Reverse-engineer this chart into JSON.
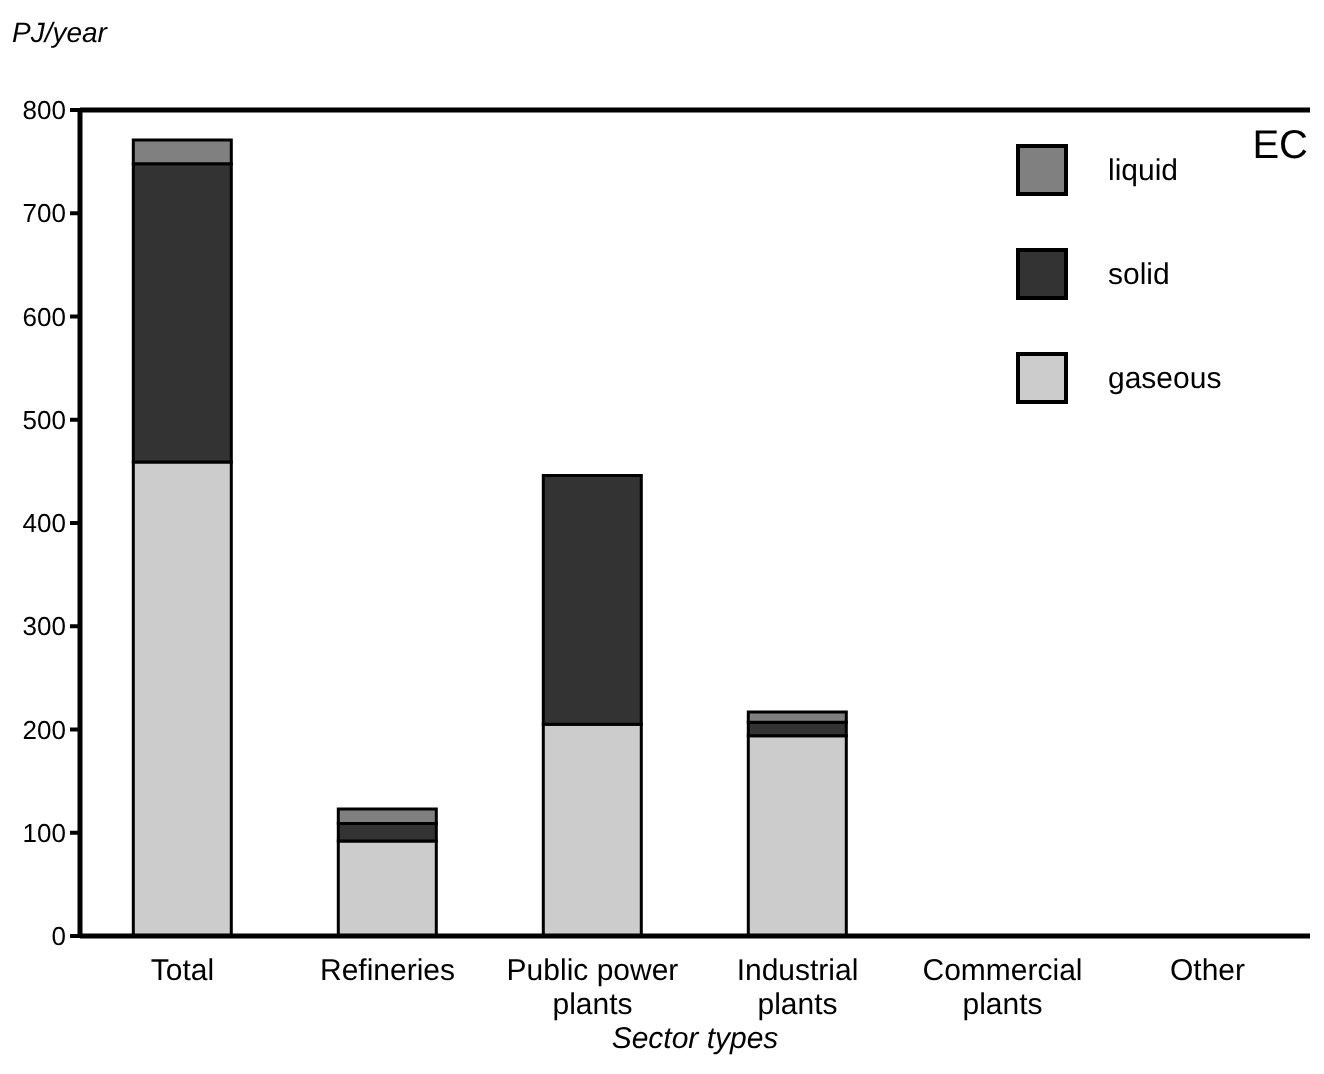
{
  "chart_data": {
    "type": "bar",
    "stacked": true,
    "xlabel": "Sector types",
    "ylabel": "PJ/year",
    "annotations": [
      "EC"
    ],
    "categories": [
      "Total",
      "Refineries",
      "Public power plants",
      "Industrial plants",
      "Commercial plants",
      "Other"
    ],
    "series": [
      {
        "name": "gaseous",
        "color": "#cccccc",
        "values": [
          459,
          92,
          205,
          194,
          0,
          0
        ]
      },
      {
        "name": "solid",
        "color": "#333333",
        "values": [
          289,
          17,
          241,
          13,
          0,
          0
        ]
      },
      {
        "name": "liquid",
        "color": "#808080",
        "values": [
          23,
          14,
          0,
          10,
          0,
          0
        ]
      }
    ],
    "ylim": [
      0,
      800
    ],
    "yticks": [
      0,
      100,
      200,
      300,
      400,
      500,
      600,
      700,
      800
    ],
    "grid": false,
    "legend": "top right"
  }
}
